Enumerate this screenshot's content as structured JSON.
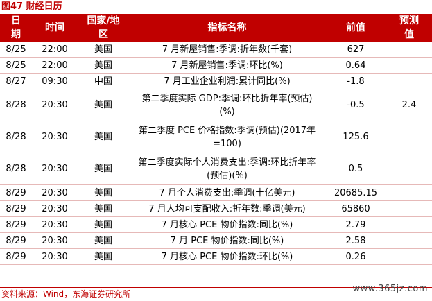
{
  "caption": "图47 财经日历",
  "headers": {
    "date": "日期",
    "time": "时间",
    "region": "国家/地区",
    "indicator": "指标名称",
    "prev": "前值",
    "forecast": "预测值"
  },
  "rows": [
    {
      "date": "8/25",
      "time": "22:00",
      "region": "美国",
      "indicator": "7 月新屋销售:季调:折年数(千套)",
      "prev": "627",
      "forecast": ""
    },
    {
      "date": "8/25",
      "time": "22:00",
      "region": "美国",
      "indicator": "7 月新屋销售:季调:环比(%)",
      "prev": "0.64",
      "forecast": ""
    },
    {
      "date": "8/27",
      "time": "09:30",
      "region": "中国",
      "indicator": "7 月工业企业利润:累计同比(%)",
      "prev": "-1.8",
      "forecast": ""
    },
    {
      "date": "8/28",
      "time": "20:30",
      "region": "美国",
      "indicator": "第二季度实际 GDP:季调:环比折年率(预估)(%)",
      "prev": "-0.5",
      "forecast": "2.4"
    },
    {
      "date": "8/28",
      "time": "20:30",
      "region": "美国",
      "indicator": "第二季度 PCE 价格指数:季调(预估)(2017年=100)",
      "prev": "125.6",
      "forecast": ""
    },
    {
      "date": "8/28",
      "time": "20:30",
      "region": "美国",
      "indicator": "第二季度实际个人消费支出:季调:环比折年率(预估)(%)",
      "prev": "0.5",
      "forecast": ""
    },
    {
      "date": "8/29",
      "time": "20:30",
      "region": "美国",
      "indicator": "7 月个人消费支出:季调(十亿美元)",
      "prev": "20685.15",
      "forecast": ""
    },
    {
      "date": "8/29",
      "time": "20:30",
      "region": "美国",
      "indicator": "7 月人均可支配收入:折年数:季调(美元)",
      "prev": "65860",
      "forecast": ""
    },
    {
      "date": "8/29",
      "time": "20:30",
      "region": "美国",
      "indicator": "7 月核心 PCE 物价指数:同比(%)",
      "prev": "2.79",
      "forecast": ""
    },
    {
      "date": "8/29",
      "time": "20:30",
      "region": "美国",
      "indicator": "7 月 PCE 物价指数:同比(%)",
      "prev": "2.58",
      "forecast": ""
    },
    {
      "date": "8/29",
      "time": "20:30",
      "region": "美国",
      "indicator": "7 月核心 PCE 物价指数:环比(%)",
      "prev": "0.26",
      "forecast": ""
    }
  ],
  "footer": "资料来源：Wind，东海证券研究所",
  "watermark": "www.365jz.com"
}
